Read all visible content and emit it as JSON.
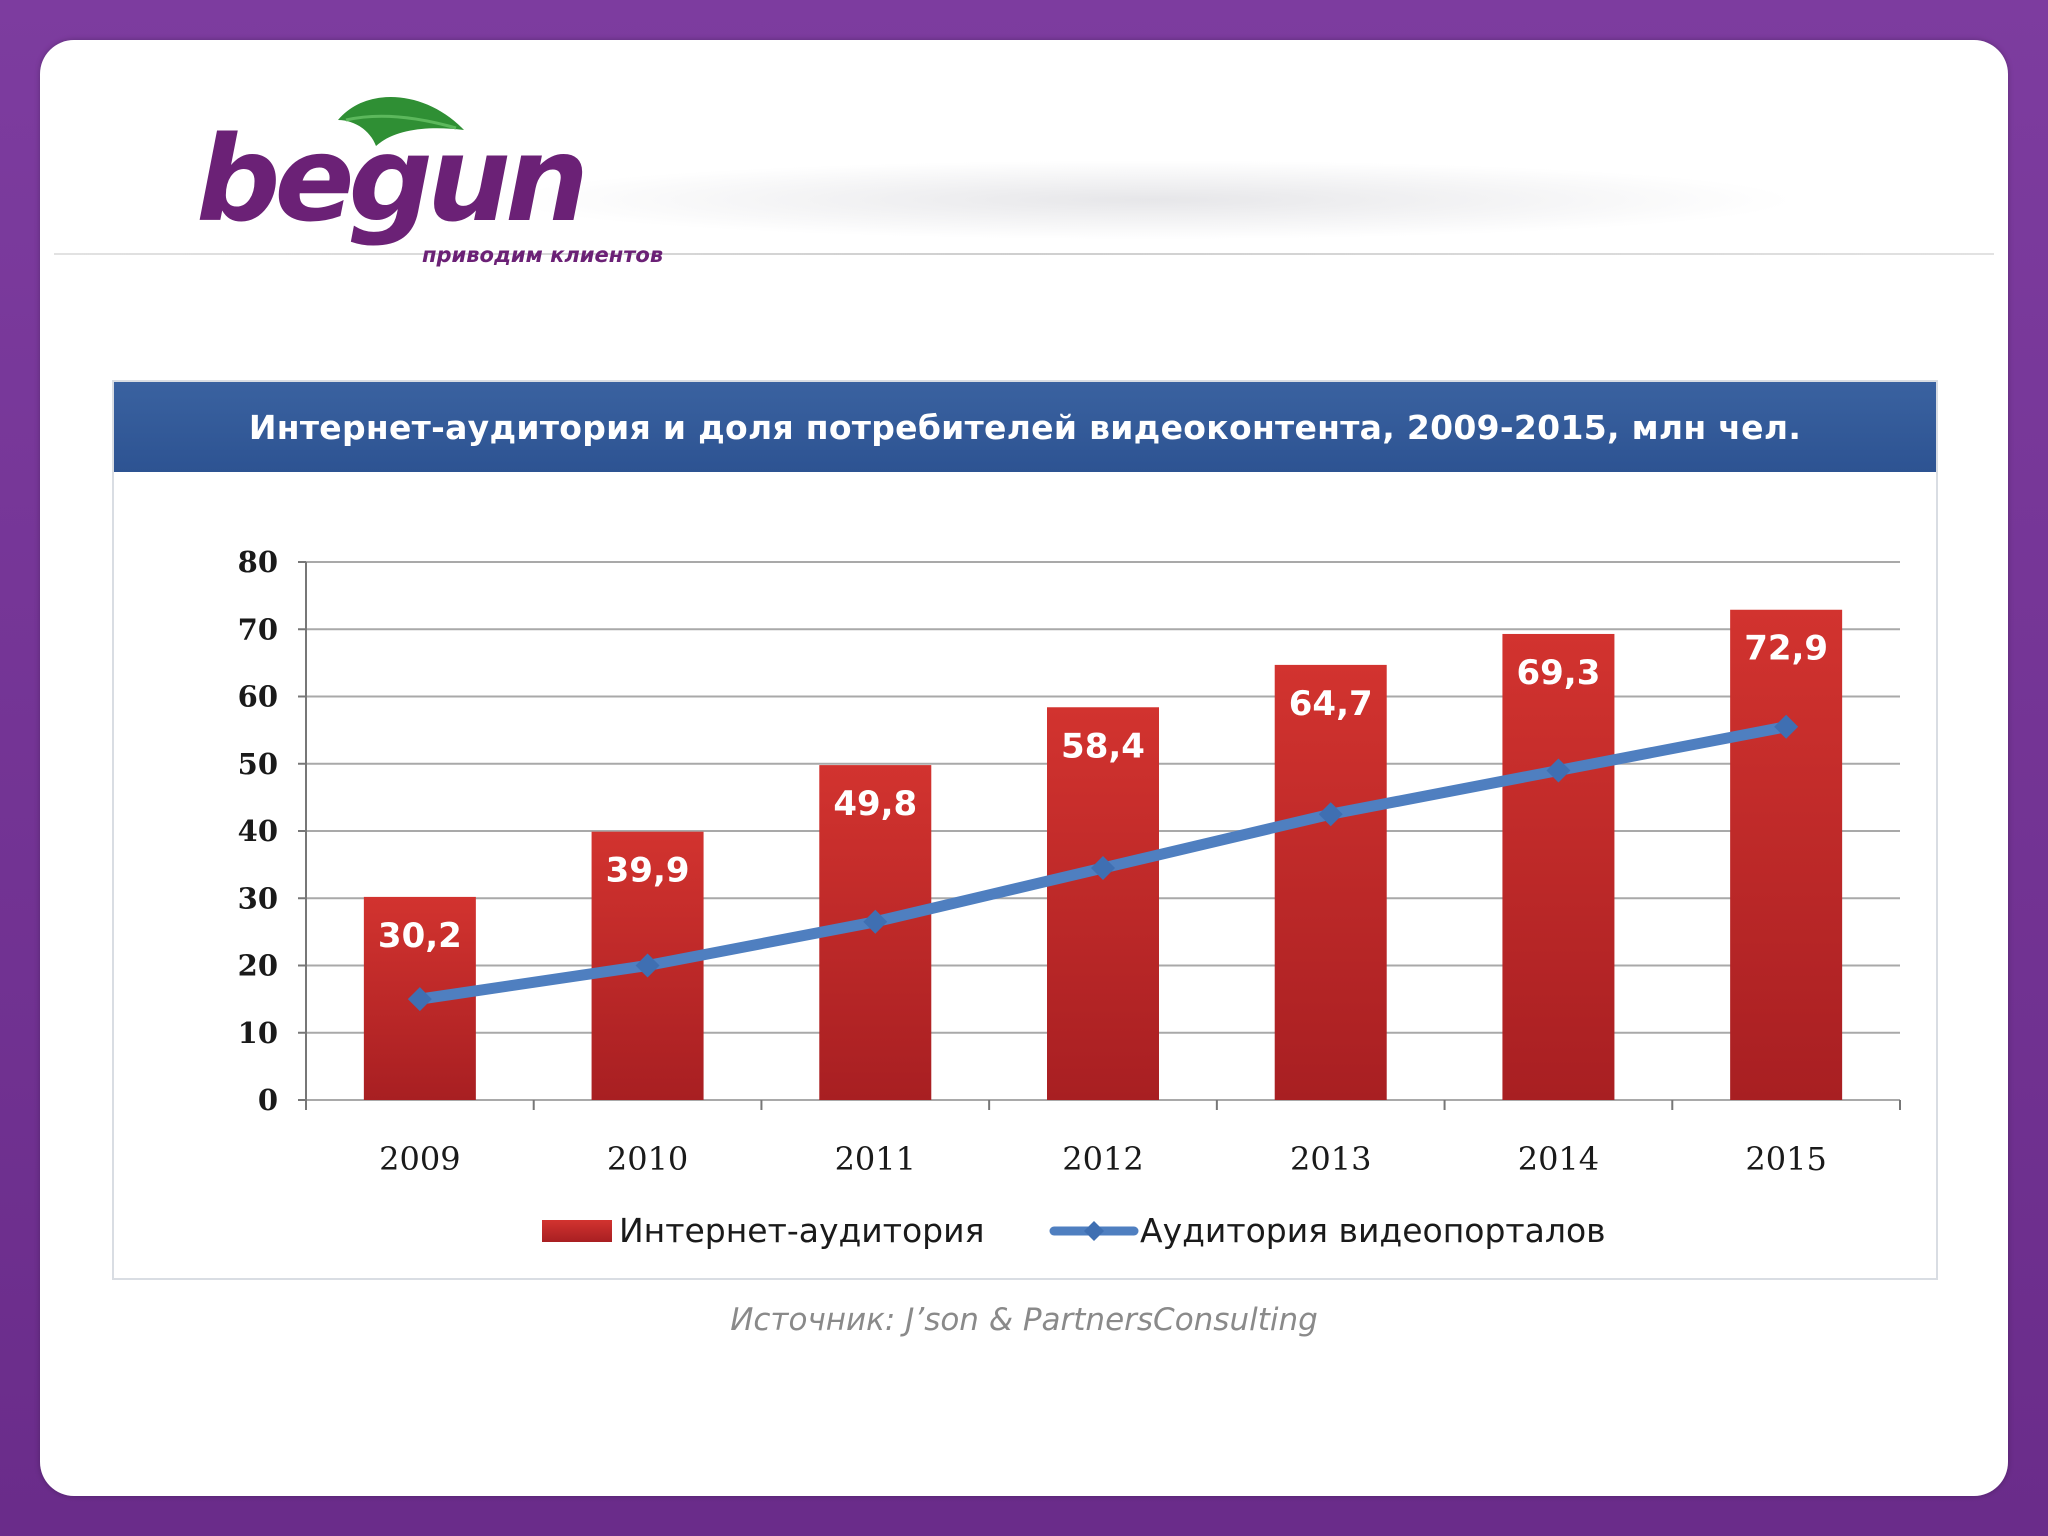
{
  "logo": {
    "word": "begun",
    "tagline": "приводим клиентов"
  },
  "colors": {
    "frame": "#6b2f8e",
    "title_bar": "#2f5594",
    "bar": "#c0282a",
    "line": "#4f7fc0",
    "logo_purple": "#6b2176",
    "logo_green": "#2f8f34"
  },
  "chart_data": {
    "type": "bar",
    "title": "Интернет-аудитория и доля потребителей видеоконтента, 2009-2015, млн чел.",
    "categories": [
      "2009",
      "2010",
      "2011",
      "2012",
      "2013",
      "2014",
      "2015"
    ],
    "ylim": [
      0,
      80
    ],
    "yticks": [
      0,
      10,
      20,
      30,
      40,
      50,
      60,
      70,
      80
    ],
    "ytick_labels": [
      "0",
      "10",
      "20",
      "30",
      "40",
      "50",
      "60",
      "70",
      "80"
    ],
    "grid": true,
    "legend_position": "bottom",
    "series": [
      {
        "name": "Интернет-аудитория",
        "kind": "bar",
        "values": [
          30.2,
          39.9,
          49.8,
          58.4,
          64.7,
          69.3,
          72.9
        ],
        "labels": [
          "30,2",
          "39,9",
          "49,8",
          "58,4",
          "64,7",
          "69,3",
          "72,9"
        ]
      },
      {
        "name": "Аудитория видеопорталов",
        "kind": "line",
        "values": [
          15,
          20,
          26.5,
          34.5,
          42.5,
          49,
          55.5
        ]
      }
    ]
  },
  "source": "Источник: J’son & PartnersConsulting"
}
